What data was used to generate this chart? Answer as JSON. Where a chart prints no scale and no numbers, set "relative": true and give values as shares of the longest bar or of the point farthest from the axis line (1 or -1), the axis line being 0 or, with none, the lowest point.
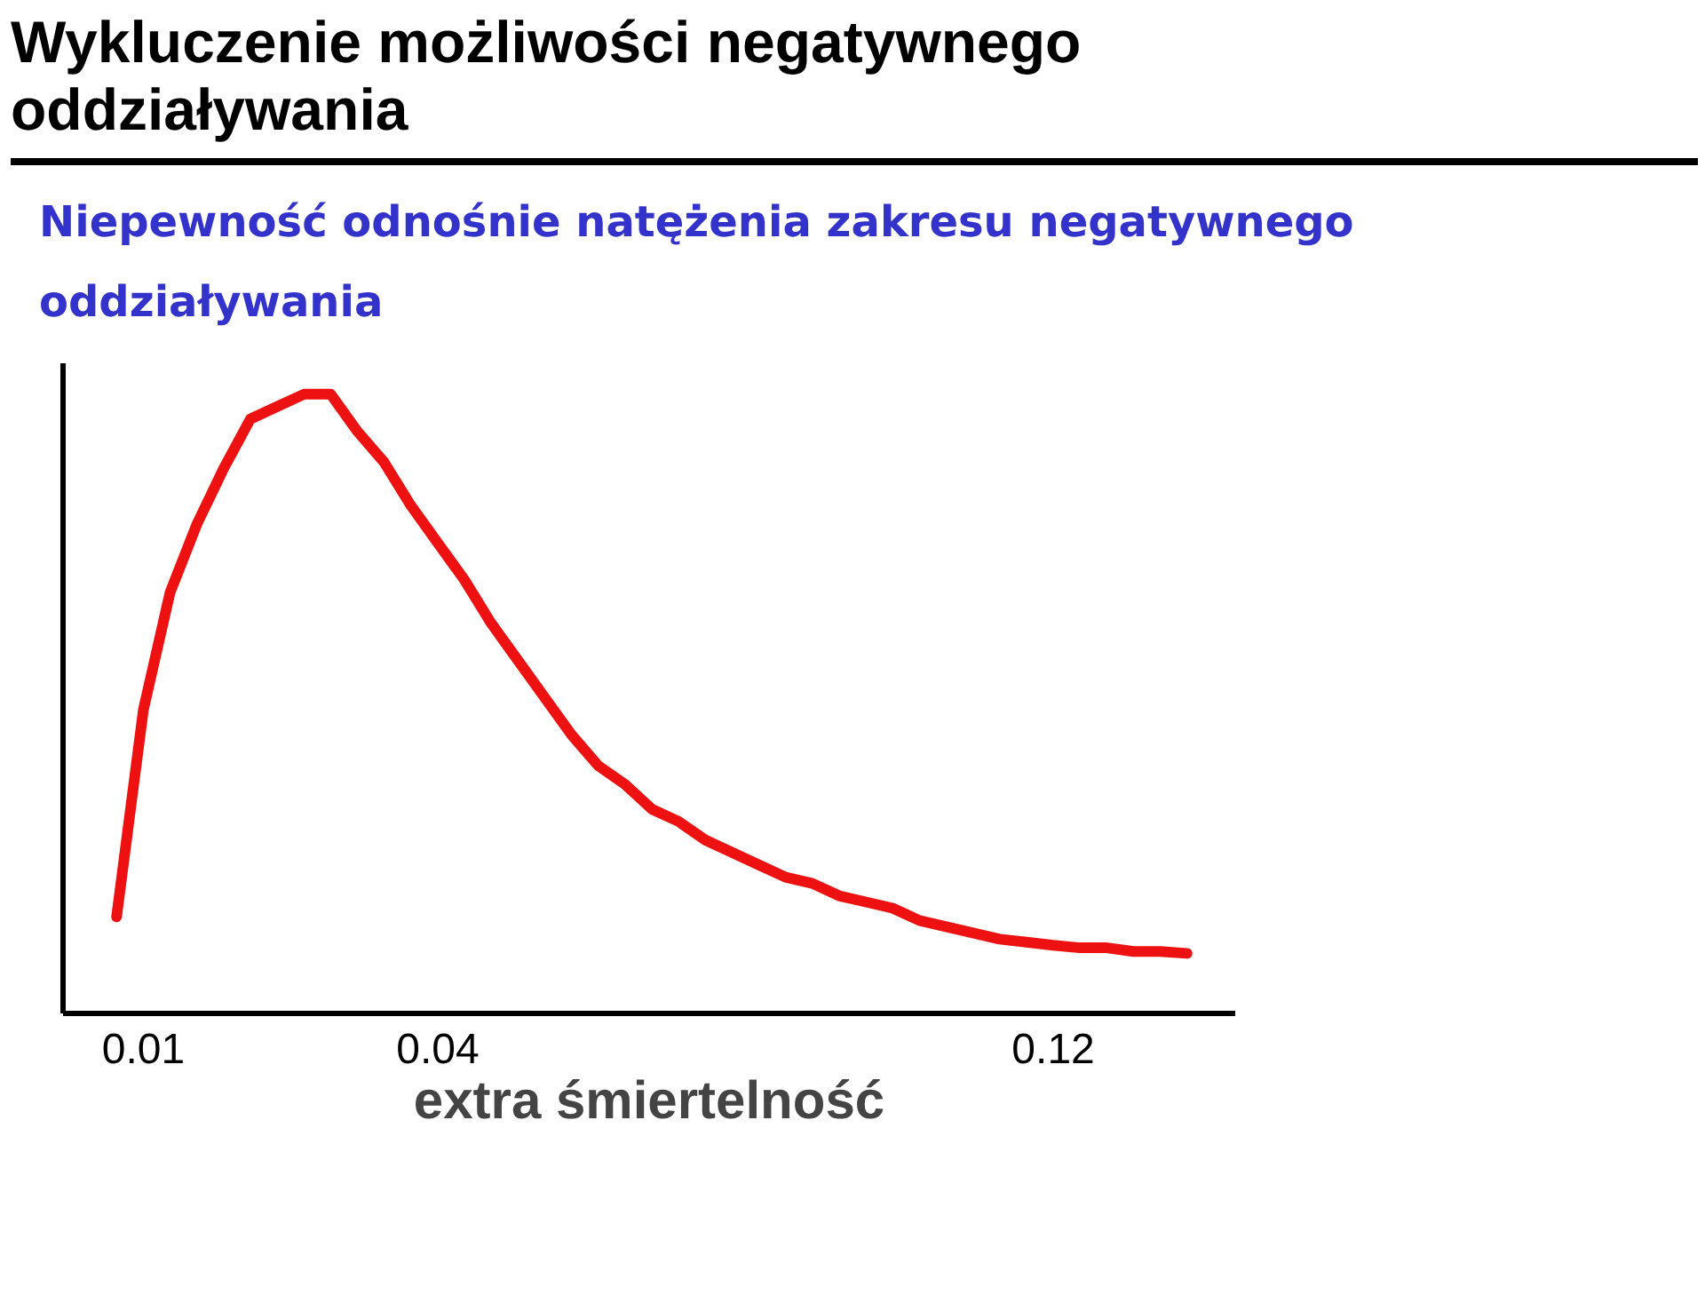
{
  "chart_data": {
    "type": "line",
    "title": "Wykluczenie możliwości negatywnego oddziaływania",
    "subtitle": "Niepewność odnośnie natężenia zakresu negatywnego oddziaływania",
    "xlabel": "extra śmiertelność",
    "relative": true,
    "grid": false,
    "marker": "none",
    "line_style": "solid",
    "categories": [
      null,
      "0.01",
      null,
      null,
      null,
      null,
      null,
      null,
      null,
      null,
      null,
      null,
      "0.04",
      null,
      null,
      null,
      null,
      null,
      null,
      null,
      null,
      null,
      null,
      null,
      null,
      null,
      null,
      null,
      null,
      null,
      null,
      null,
      null,
      null,
      null,
      "0.12",
      null,
      null,
      null,
      null,
      null
    ],
    "series": [
      {
        "color": "#ee1111",
        "values": [
          0.156,
          0.49,
          0.68,
          0.79,
          0.88,
          0.96,
          0.98,
          1,
          1,
          0.94,
          0.89,
          0.82,
          0.76,
          0.7,
          0.63,
          0.57,
          0.51,
          0.45,
          0.4,
          0.37,
          0.33,
          0.31,
          0.28,
          0.26,
          0.24,
          0.22,
          0.21,
          0.19,
          0.18,
          0.17,
          0.15,
          0.14,
          0.13,
          0.12,
          0.115,
          0.11,
          0.106,
          0.106,
          0.1,
          0.1,
          0.097
        ]
      }
    ]
  }
}
